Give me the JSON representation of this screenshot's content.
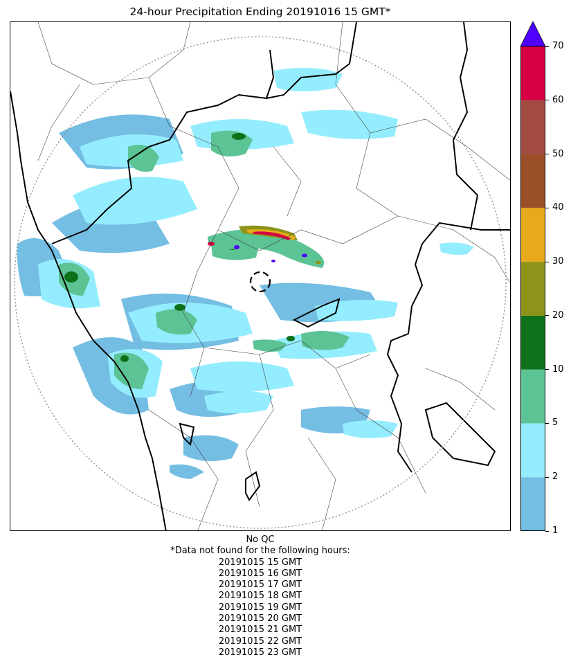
{
  "title": "24-hour Precipitation Ending 20191016 15 GMT*",
  "colorbar": {
    "ticks": [
      "1",
      "2",
      "5",
      "10",
      "20",
      "30",
      "40",
      "50",
      "60",
      "70"
    ],
    "bins": [
      {
        "from": 1,
        "to": 2,
        "color": "#74bde3"
      },
      {
        "from": 2,
        "to": 5,
        "color": "#94edfe"
      },
      {
        "from": 5,
        "to": 10,
        "color": "#5bc394"
      },
      {
        "from": 10,
        "to": 20,
        "color": "#0e7119"
      },
      {
        "from": 20,
        "to": 30,
        "color": "#8d9419"
      },
      {
        "from": 30,
        "to": 40,
        "color": "#e6aa1c"
      },
      {
        "from": 40,
        "to": 50,
        "color": "#9b4f28"
      },
      {
        "from": 50,
        "to": 60,
        "color": "#a34a41"
      },
      {
        "from": 60,
        "to": 70,
        "color": "#d40043"
      }
    ],
    "over_color": "#5000ff"
  },
  "footer": {
    "qc": "No QC",
    "note": "*Data not found for the following hours:",
    "hours": [
      "20191015 15 GMT",
      "20191015 16 GMT",
      "20191015 17 GMT",
      "20191015 18 GMT",
      "20191015 19 GMT",
      "20191015 20 GMT",
      "20191015 21 GMT",
      "20191015 22 GMT",
      "20191015 23 GMT"
    ]
  }
}
